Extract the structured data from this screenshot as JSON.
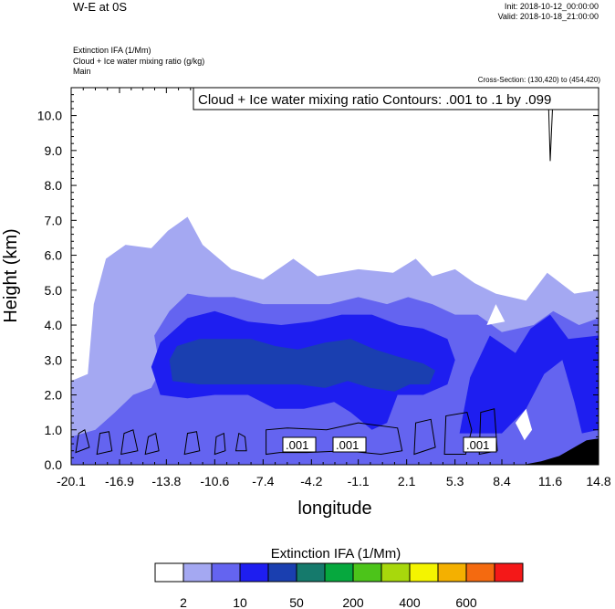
{
  "header": {
    "title": "W-E at 0S",
    "init": "Init: 2018-10-12_00:00:00",
    "valid": "Valid: 2018-10-18_21:00:00",
    "field_lines": [
      "Extinction IFA   (1/Mm)",
      "Cloud + Ice water mixing ratio   (g/kg)",
      "Main"
    ],
    "cross_section": "Cross-Section: (130,420) to (454,420)"
  },
  "chart_data": {
    "type": "heatmap",
    "xlabel": "longitude",
    "ylabel": "Height (km)",
    "xlim": [
      -20.1,
      14.8
    ],
    "ylim": [
      0.0,
      10.8
    ],
    "x_ticks": [
      "-20.1",
      "-16.9",
      "-13.8",
      "-10.6",
      "-7.4",
      "-4.2",
      "-1.1",
      "2.1",
      "5.3",
      "8.4",
      "11.6",
      "14.8"
    ],
    "y_ticks": [
      "0.0",
      "1.0",
      "2.0",
      "3.0",
      "4.0",
      "5.0",
      "6.0",
      "7.0",
      "8.0",
      "9.0",
      "10.0"
    ],
    "contour_label": "Cloud + Ice water mixing ratio Contours: .001 to .1 by .099",
    "contour_value_labels": [
      ".001",
      ".001",
      ".001"
    ],
    "colorbar": {
      "title": "Extinction IFA  (1/Mm)",
      "tick_labels": [
        "2",
        "10",
        "50",
        "200",
        "400",
        "600"
      ],
      "colors": [
        "#ffffff",
        "#a4a8f2",
        "#6464f0",
        "#1e1ef0",
        "#1a3fb0",
        "#157a6c",
        "#06a83e",
        "#4cc41a",
        "#a8d80c",
        "#f4f400",
        "#f4b000",
        "#f46a10",
        "#f41818"
      ]
    },
    "extinction_regions": {
      "level1_lightblue": [
        [
          -20.1,
          0
        ],
        [
          -20.1,
          2.4
        ],
        [
          -19,
          2.6
        ],
        [
          -18.6,
          4.6
        ],
        [
          -17.8,
          5.9
        ],
        [
          -16.5,
          6.3
        ],
        [
          -14.8,
          6.2
        ],
        [
          -13.7,
          6.7
        ],
        [
          -12.4,
          7.1
        ],
        [
          -11.4,
          6.3
        ],
        [
          -9.5,
          5.6
        ],
        [
          -7.4,
          5.3
        ],
        [
          -5.4,
          5.9
        ],
        [
          -3.8,
          5.4
        ],
        [
          -1.1,
          5.6
        ],
        [
          1.2,
          5.5
        ],
        [
          2.7,
          5.9
        ],
        [
          3.8,
          5.4
        ],
        [
          5.3,
          5.6
        ],
        [
          6.6,
          5.2
        ],
        [
          8,
          4.9
        ],
        [
          10,
          4.7
        ],
        [
          11.4,
          5.5
        ],
        [
          13.2,
          4.9
        ],
        [
          14.8,
          5.0
        ],
        [
          14.8,
          0
        ]
      ],
      "level2_medblue": [
        [
          -20.1,
          0
        ],
        [
          -20.1,
          0.8
        ],
        [
          -18.5,
          1.0
        ],
        [
          -17.2,
          1.5
        ],
        [
          -16,
          2.0
        ],
        [
          -14.8,
          2.2
        ],
        [
          -14.2,
          2.7
        ],
        [
          -14.6,
          3.7
        ],
        [
          -13.6,
          4.4
        ],
        [
          -12.4,
          4.9
        ],
        [
          -11,
          4.8
        ],
        [
          -9.3,
          4.8
        ],
        [
          -7.4,
          4.6
        ],
        [
          -5,
          4.6
        ],
        [
          -3,
          4.6
        ],
        [
          -1.1,
          4.8
        ],
        [
          0.8,
          4.6
        ],
        [
          2.2,
          4.8
        ],
        [
          3.8,
          4.6
        ],
        [
          5.3,
          4.3
        ],
        [
          6.8,
          4.3
        ],
        [
          8.4,
          3.8
        ],
        [
          10.5,
          4.0
        ],
        [
          11.8,
          4.4
        ],
        [
          13.5,
          4.0
        ],
        [
          14.8,
          4.2
        ],
        [
          14.8,
          0
        ]
      ],
      "level3_blue": [
        [
          -14.2,
          2.0
        ],
        [
          -14.8,
          2.8
        ],
        [
          -14.2,
          3.5
        ],
        [
          -12.4,
          4.2
        ],
        [
          -10.6,
          4.4
        ],
        [
          -8.4,
          4.1
        ],
        [
          -6.2,
          4.0
        ],
        [
          -4.2,
          4.1
        ],
        [
          -2.2,
          4.3
        ],
        [
          -0.2,
          4.3
        ],
        [
          1.6,
          4.0
        ],
        [
          3.2,
          3.9
        ],
        [
          4.8,
          3.6
        ],
        [
          5.3,
          3.0
        ],
        [
          4.8,
          2.3
        ],
        [
          3.2,
          2.0
        ],
        [
          1.5,
          2.0
        ],
        [
          0.8,
          1.2
        ],
        [
          -0.2,
          1.0
        ],
        [
          -1.6,
          1.5
        ],
        [
          -2.7,
          1.8
        ],
        [
          -4.7,
          1.6
        ],
        [
          -6.6,
          1.6
        ],
        [
          -8.4,
          2.0
        ],
        [
          -10.6,
          2.0
        ],
        [
          -12.4,
          1.9
        ]
      ],
      "level3_blue_east": [
        [
          5.6,
          0.9
        ],
        [
          6.3,
          2.5
        ],
        [
          7.6,
          3.7
        ],
        [
          9.3,
          3.2
        ],
        [
          10.3,
          3.9
        ],
        [
          11.6,
          4.3
        ],
        [
          12.8,
          3.6
        ],
        [
          14.8,
          3.7
        ],
        [
          14.8,
          1.0
        ],
        [
          13.7,
          0.9
        ],
        [
          13.2,
          1.8
        ],
        [
          12.4,
          3.0
        ],
        [
          11.2,
          2.6
        ],
        [
          10,
          1.6
        ],
        [
          8.4,
          0.9
        ]
      ],
      "level4_darkblue": [
        [
          -13.4,
          2.4
        ],
        [
          -13.6,
          3.0
        ],
        [
          -13.1,
          3.4
        ],
        [
          -11.6,
          3.6
        ],
        [
          -9.8,
          3.6
        ],
        [
          -8.2,
          3.6
        ],
        [
          -6.6,
          3.4
        ],
        [
          -5.1,
          3.3
        ],
        [
          -3.3,
          3.5
        ],
        [
          -1.6,
          3.6
        ],
        [
          0,
          3.3
        ],
        [
          1.5,
          3.1
        ],
        [
          3.2,
          2.9
        ],
        [
          4.0,
          2.7
        ],
        [
          3.6,
          2.3
        ],
        [
          2.3,
          2.3
        ],
        [
          1.3,
          2.1
        ],
        [
          -0.3,
          2.2
        ],
        [
          -1.8,
          2.4
        ],
        [
          -3.3,
          2.2
        ],
        [
          -5.1,
          2.3
        ],
        [
          -6.6,
          2.3
        ],
        [
          -8.2,
          2.3
        ],
        [
          -9.8,
          2.3
        ],
        [
          -11.6,
          2.3
        ]
      ],
      "white_holes": [
        [
          [
            -20.1,
            2.5
          ],
          [
            -19.2,
            2.8
          ],
          [
            -18.8,
            4.3
          ],
          [
            -19.8,
            4.4
          ],
          [
            -20.1,
            4.2
          ]
        ],
        [
          [
            9.3,
            1.2
          ],
          [
            10,
            1.6
          ],
          [
            10.4,
            1.0
          ],
          [
            9.9,
            0.7
          ]
        ],
        [
          [
            7.4,
            4.0
          ],
          [
            8.0,
            4.6
          ],
          [
            8.6,
            4.1
          ]
        ]
      ],
      "terrain": [
        [
          9.8,
          0
        ],
        [
          11,
          0.1
        ],
        [
          12.2,
          0.25
        ],
        [
          13.2,
          0.5
        ],
        [
          14,
          0.7
        ],
        [
          14.8,
          0.75
        ],
        [
          14.8,
          0
        ]
      ]
    }
  }
}
